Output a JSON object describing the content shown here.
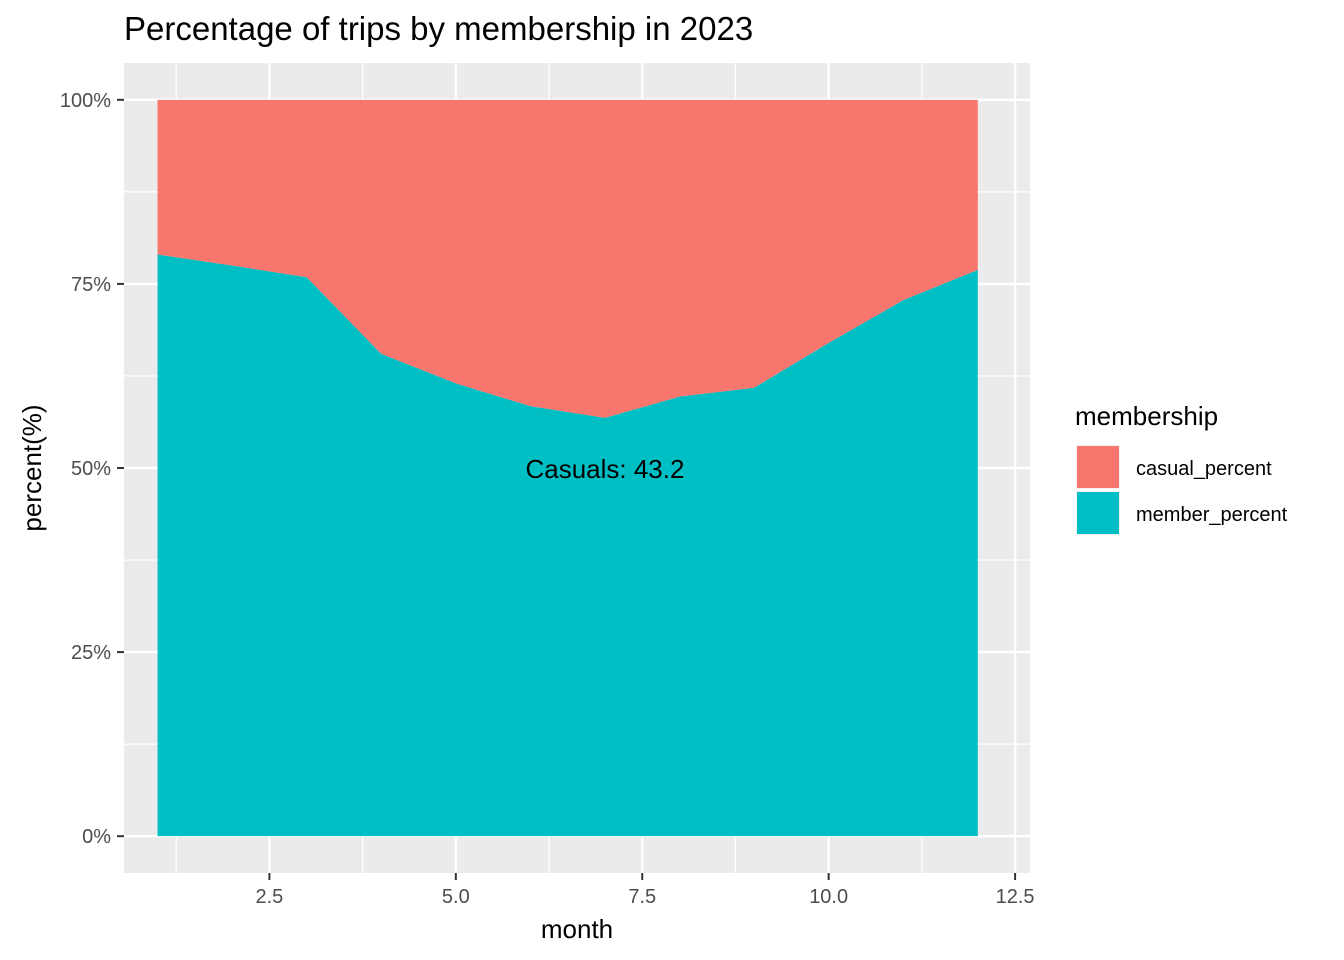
{
  "chart_data": {
    "type": "area",
    "stacked": true,
    "title": "Percentage of trips by membership in 2023",
    "xlabel": "month",
    "ylabel": "percent(%)",
    "xlim": [
      0.55,
      12.7
    ],
    "ylim": [
      -5,
      105
    ],
    "x_ticks": [
      {
        "value": 2.5,
        "label": "2.5"
      },
      {
        "value": 5.0,
        "label": "5.0"
      },
      {
        "value": 7.5,
        "label": "7.5"
      },
      {
        "value": 10.0,
        "label": "10.0"
      },
      {
        "value": 12.5,
        "label": "12.5"
      }
    ],
    "y_ticks": [
      {
        "value": 0,
        "label": "0%"
      },
      {
        "value": 25,
        "label": "25%"
      },
      {
        "value": 50,
        "label": "50%"
      },
      {
        "value": 75,
        "label": "75%"
      },
      {
        "value": 100,
        "label": "100%"
      }
    ],
    "x": [
      1,
      2,
      3,
      4,
      5,
      6,
      7,
      8,
      9,
      10,
      11,
      12
    ],
    "series": [
      {
        "name": "member_percent",
        "color": "#00BFC4",
        "values": [
          79.0,
          77.5,
          75.9,
          65.5,
          61.5,
          58.4,
          56.8,
          59.7,
          60.9,
          67.0,
          72.8,
          76.9
        ]
      },
      {
        "name": "casual_percent",
        "color": "#F8766D",
        "values": [
          21.0,
          22.5,
          24.1,
          34.5,
          38.5,
          41.6,
          43.2,
          40.3,
          39.1,
          33.0,
          27.2,
          23.1
        ]
      }
    ],
    "annotation": {
      "text": "Casuals:  43.2",
      "x": 7,
      "y": 50
    },
    "legend": {
      "title": "membership",
      "position": "right",
      "items": [
        {
          "label": "casual_percent",
          "color": "#F8766D"
        },
        {
          "label": "member_percent",
          "color": "#00BFC4"
        }
      ]
    },
    "grid": true,
    "panel_background": "#EBEBEB",
    "grid_color": "#FFFFFF"
  }
}
